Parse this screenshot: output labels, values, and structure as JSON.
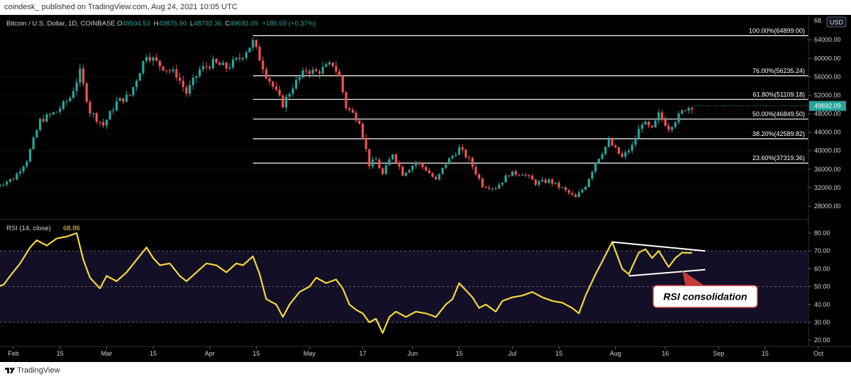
{
  "header": {
    "published_line": "coindesk_  published on TradingView.com, Aug 24, 2021 10:05 UTC"
  },
  "price_pane": {
    "symbol": "Bitcoin / U.S. Dollar, 1D, COINBASE",
    "ohlc": [
      {
        "label": "O",
        "value": "49504.53"
      },
      {
        "label": "H",
        "value": "49875.90"
      },
      {
        "label": "L",
        "value": "48792.36"
      },
      {
        "label": "C",
        "value": "49692.09"
      }
    ],
    "change": "+185.59 (+0.37%)",
    "currency": "USD",
    "last_price_label": "49692.09",
    "top_partial_label": "68"
  },
  "rsi_pane": {
    "label": "RSI (14, close)",
    "value": "68.86",
    "annotation": "RSI consolidation"
  },
  "footer": {
    "brand": "TradingView"
  },
  "colors": {
    "background": "#000000",
    "up_candle": "#26a69a",
    "down_candle": "#ef5350",
    "rsi_line": "#f5d83a",
    "fib_line": "#ffffff",
    "annotation_border": "#c83a3a",
    "last_price_bg": "#26a69a",
    "axis_text": "#d1d4dc"
  },
  "chart_data": [
    {
      "type": "candlestick",
      "title": "Bitcoin / U.S. Dollar, 1D, COINBASE",
      "ylim": [
        25000,
        68500
      ],
      "y_ticks": [
        28000,
        32000,
        36000,
        40000,
        44000,
        48000,
        52000,
        56000,
        60000,
        64000
      ],
      "x_ticks": [
        "Feb",
        "15",
        "Mar",
        "15",
        "Apr",
        "15",
        "May",
        "17",
        "Jun",
        "15",
        "Jul",
        "15",
        "Aug",
        "16",
        "Sep",
        "15",
        "Oct"
      ],
      "x_range": [
        "2021-01-27",
        "2021-10-05"
      ],
      "waypoints": [
        [
          "2021-01-27",
          32500
        ],
        [
          "2021-02-01",
          34000
        ],
        [
          "2021-02-05",
          38000
        ],
        [
          "2021-02-09",
          46500
        ],
        [
          "2021-02-14",
          48500
        ],
        [
          "2021-02-18",
          51500
        ],
        [
          "2021-02-21",
          57000
        ],
        [
          "2021-02-24",
          48500
        ],
        [
          "2021-02-28",
          45500
        ],
        [
          "2021-03-04",
          50500
        ],
        [
          "2021-03-08",
          52000
        ],
        [
          "2021-03-13",
          61000
        ],
        [
          "2021-03-17",
          58500
        ],
        [
          "2021-03-22",
          56500
        ],
        [
          "2021-03-25",
          52500
        ],
        [
          "2021-03-29",
          57500
        ],
        [
          "2021-04-02",
          59000
        ],
        [
          "2021-04-06",
          58000
        ],
        [
          "2021-04-10",
          60000
        ],
        [
          "2021-04-14",
          63500
        ],
        [
          "2021-04-18",
          56500
        ],
        [
          "2021-04-23",
          50000
        ],
        [
          "2021-04-26",
          54000
        ],
        [
          "2021-04-30",
          57500
        ],
        [
          "2021-05-03",
          57000
        ],
        [
          "2021-05-08",
          58800
        ],
        [
          "2021-05-10",
          56000
        ],
        [
          "2021-05-12",
          49500
        ],
        [
          "2021-05-16",
          46500
        ],
        [
          "2021-05-19",
          37000
        ],
        [
          "2021-05-21",
          38000
        ],
        [
          "2021-05-23",
          34800
        ],
        [
          "2021-05-26",
          39500
        ],
        [
          "2021-05-29",
          35000
        ],
        [
          "2021-06-02",
          37500
        ],
        [
          "2021-06-05",
          36000
        ],
        [
          "2021-06-08",
          33500
        ],
        [
          "2021-06-11",
          37300
        ],
        [
          "2021-06-15",
          40500
        ],
        [
          "2021-06-18",
          38000
        ],
        [
          "2021-06-22",
          32500
        ],
        [
          "2021-06-26",
          32000
        ],
        [
          "2021-06-30",
          35000
        ],
        [
          "2021-07-04",
          35200
        ],
        [
          "2021-07-08",
          33000
        ],
        [
          "2021-07-12",
          33500
        ],
        [
          "2021-07-16",
          31800
        ],
        [
          "2021-07-20",
          29800
        ],
        [
          "2021-07-23",
          32500
        ],
        [
          "2021-07-26",
          37500
        ],
        [
          "2021-07-30",
          42000
        ],
        [
          "2021-08-03",
          38500
        ],
        [
          "2021-08-06",
          41000
        ],
        [
          "2021-08-09",
          46200
        ],
        [
          "2021-08-12",
          44500
        ],
        [
          "2021-08-14",
          47800
        ],
        [
          "2021-08-17",
          45000
        ],
        [
          "2021-08-20",
          47500
        ],
        [
          "2021-08-22",
          49200
        ],
        [
          "2021-08-24",
          49692
        ]
      ],
      "fib_levels": [
        {
          "label": "100.00%(64899.00)",
          "value": 64899.0
        },
        {
          "label": "76.00%(56235.24)",
          "value": 56235.24
        },
        {
          "label": "61.80%(51109.18)",
          "value": 51109.18
        },
        {
          "label": "50.00%(46849.50)",
          "value": 46849.5
        },
        {
          "label": "38.20%(42589.82)",
          "value": 42589.82
        },
        {
          "label": "23.60%(37319.36)",
          "value": 37319.36
        }
      ],
      "fib_start": "2021-04-14",
      "last_price": 49692.09
    },
    {
      "type": "line",
      "title": "RSI (14, close)",
      "ylim": [
        17,
        84
      ],
      "y_ticks": [
        20.0,
        30.0,
        40.0,
        50.0,
        60.0,
        70.0,
        80.0
      ],
      "dashed_levels": [
        30,
        50,
        70
      ],
      "series": [
        {
          "name": "RSI (14, close)",
          "points": [
            [
              "2021-01-27",
              50
            ],
            [
              "2021-01-29",
              51
            ],
            [
              "2021-01-31",
              56
            ],
            [
              "2021-02-03",
              63
            ],
            [
              "2021-02-06",
              72
            ],
            [
              "2021-02-08",
              76
            ],
            [
              "2021-02-11",
              73
            ],
            [
              "2021-02-14",
              77
            ],
            [
              "2021-02-17",
              78
            ],
            [
              "2021-02-20",
              80
            ],
            [
              "2021-02-22",
              65
            ],
            [
              "2021-02-24",
              55
            ],
            [
              "2021-02-27",
              49
            ],
            [
              "2021-03-01",
              56
            ],
            [
              "2021-03-04",
              53
            ],
            [
              "2021-03-07",
              58
            ],
            [
              "2021-03-10",
              65
            ],
            [
              "2021-03-13",
              72
            ],
            [
              "2021-03-15",
              66
            ],
            [
              "2021-03-17",
              62
            ],
            [
              "2021-03-20",
              63
            ],
            [
              "2021-03-23",
              56
            ],
            [
              "2021-03-25",
              53
            ],
            [
              "2021-03-28",
              58
            ],
            [
              "2021-03-31",
              63
            ],
            [
              "2021-04-03",
              62
            ],
            [
              "2021-04-06",
              58
            ],
            [
              "2021-04-09",
              63
            ],
            [
              "2021-04-11",
              62
            ],
            [
              "2021-04-14",
              67
            ],
            [
              "2021-04-16",
              57
            ],
            [
              "2021-04-18",
              43
            ],
            [
              "2021-04-21",
              40
            ],
            [
              "2021-04-23",
              33
            ],
            [
              "2021-04-25",
              40
            ],
            [
              "2021-04-28",
              47
            ],
            [
              "2021-05-01",
              50
            ],
            [
              "2021-05-03",
              55
            ],
            [
              "2021-05-06",
              52
            ],
            [
              "2021-05-09",
              54
            ],
            [
              "2021-05-11",
              49
            ],
            [
              "2021-05-13",
              40
            ],
            [
              "2021-05-15",
              37
            ],
            [
              "2021-05-17",
              35
            ],
            [
              "2021-05-19",
              30
            ],
            [
              "2021-05-21",
              32
            ],
            [
              "2021-05-23",
              24
            ],
            [
              "2021-05-25",
              33
            ],
            [
              "2021-05-27",
              36
            ],
            [
              "2021-05-30",
              33
            ],
            [
              "2021-06-02",
              36
            ],
            [
              "2021-06-05",
              35
            ],
            [
              "2021-06-08",
              33
            ],
            [
              "2021-06-11",
              40
            ],
            [
              "2021-06-13",
              43
            ],
            [
              "2021-06-15",
              52
            ],
            [
              "2021-06-17",
              48
            ],
            [
              "2021-06-19",
              44
            ],
            [
              "2021-06-21",
              38
            ],
            [
              "2021-06-23",
              40
            ],
            [
              "2021-06-26",
              36
            ],
            [
              "2021-06-28",
              42
            ],
            [
              "2021-07-01",
              44
            ],
            [
              "2021-07-04",
              45
            ],
            [
              "2021-07-07",
              47
            ],
            [
              "2021-07-10",
              44
            ],
            [
              "2021-07-13",
              42
            ],
            [
              "2021-07-16",
              41
            ],
            [
              "2021-07-19",
              38
            ],
            [
              "2021-07-21",
              35
            ],
            [
              "2021-07-23",
              45
            ],
            [
              "2021-07-26",
              57
            ],
            [
              "2021-07-28",
              64
            ],
            [
              "2021-07-31",
              75
            ],
            [
              "2021-08-03",
              60
            ],
            [
              "2021-08-05",
              57
            ],
            [
              "2021-08-08",
              69
            ],
            [
              "2021-08-10",
              71
            ],
            [
              "2021-08-12",
              66
            ],
            [
              "2021-08-14",
              70
            ],
            [
              "2021-08-17",
              61
            ],
            [
              "2021-08-19",
              66
            ],
            [
              "2021-08-21",
              69
            ],
            [
              "2021-08-24",
              68.86
            ]
          ]
        }
      ],
      "trendlines": [
        {
          "from": [
            "2021-07-31",
            75
          ],
          "to": [
            "2021-08-28",
            70
          ]
        },
        {
          "from": [
            "2021-08-05",
            56
          ],
          "to": [
            "2021-08-28",
            59.5
          ]
        }
      ]
    }
  ]
}
